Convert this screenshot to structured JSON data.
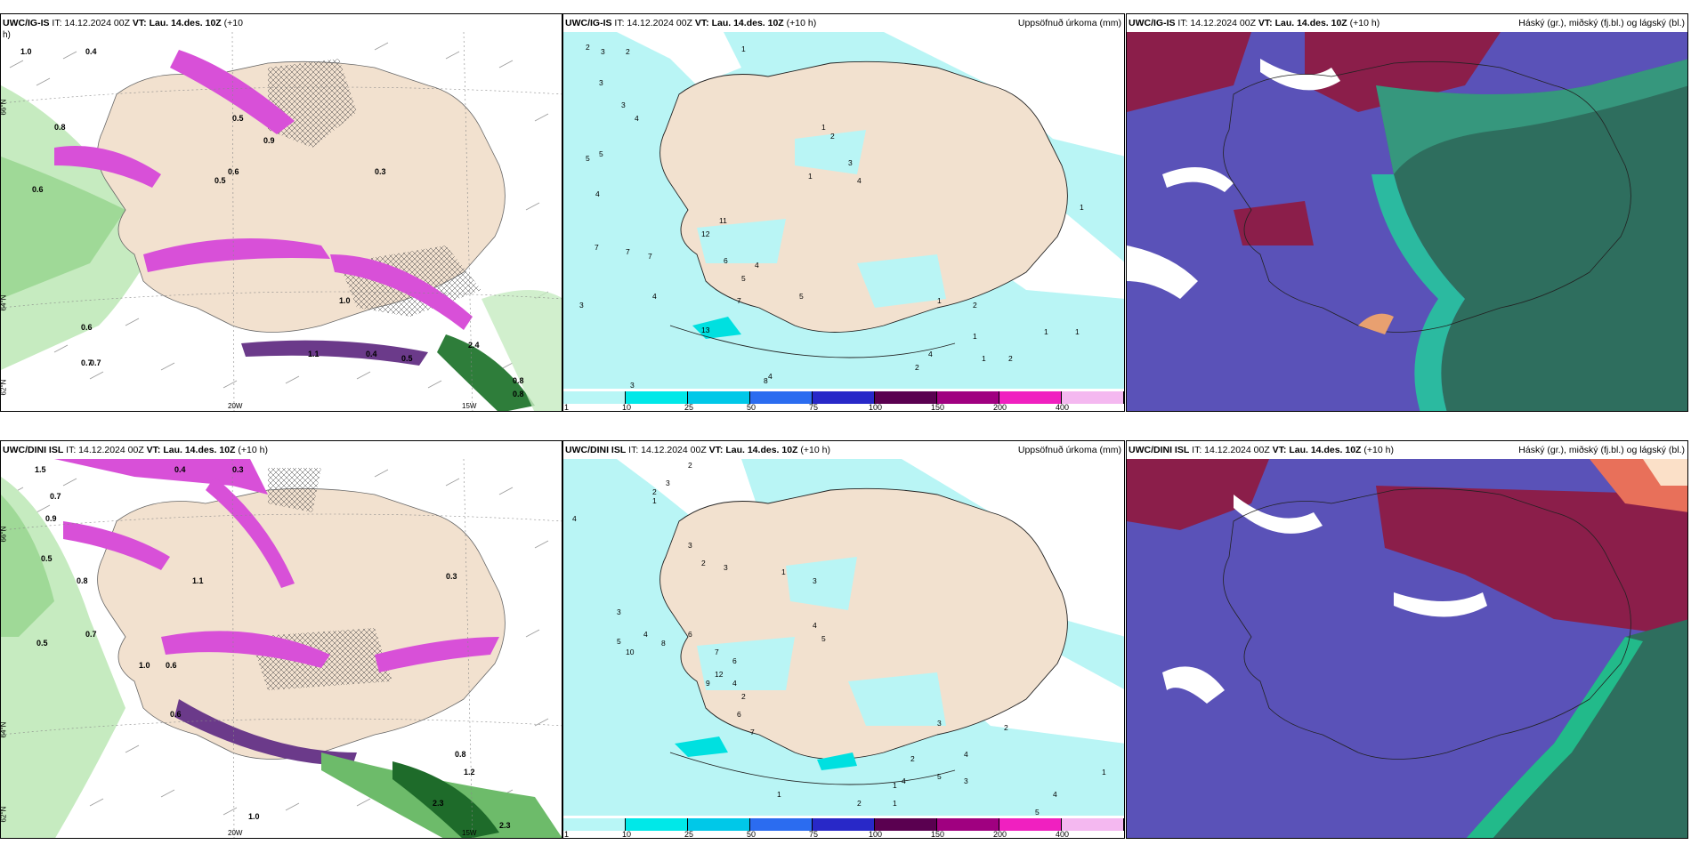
{
  "rows": [
    {
      "model": "UWC/IG-IS",
      "left_title_it": "IT: 14.12.2024 00Z",
      "left_title_vt_label": "VT:",
      "left_title_vt": "Lau. 14.des. 10Z",
      "left_title_lead": "(+10",
      "left_title_cont": "h)",
      "mid_title_it": "IT: 14.12.2024 00Z",
      "mid_title_vt_label": "VT:",
      "mid_title_vt": "Lau. 14.des. 10Z",
      "mid_title_lead": "(+10 h)",
      "mid_right": "Uppsöfnuð úrkoma (mm)",
      "right_title_it": "IT: 14.12.2024 00Z",
      "right_title_vt_label": "VT:",
      "right_title_vt": "Lau. 14.des. 10Z",
      "right_title_lead": "(+10 h)",
      "right_right": "Háský (gr.), miðský (fj.bl.) og lágský (bl.)"
    },
    {
      "model": "UWC/DINI ISL",
      "left_title_it": "IT: 14.12.2024 00Z",
      "left_title_vt_label": "VT:",
      "left_title_vt": "Lau. 14.des. 10Z",
      "left_title_lead": "(+10 h)",
      "left_title_cont": "",
      "mid_title_it": "IT: 14.12.2024 00Z",
      "mid_title_vt_label": "VT:",
      "mid_title_vt": "Lau. 14.des. 10Z",
      "mid_title_lead": "(+10 h)",
      "mid_right": "Uppsöfnuð úrkoma (mm)",
      "right_title_it": "IT: 14.12.2024 00Z",
      "right_title_vt_label": "VT:",
      "right_title_vt": "Lau. 14.des. 10Z",
      "right_title_lead": "(+10 h)",
      "right_right": "Háský (gr.), miðský (fj.bl.) og lágský (bl.)"
    }
  ],
  "axis_labels": {
    "lat66": "66°N",
    "lat64": "64°N",
    "lat62": "62°N",
    "lon20": "20W",
    "lon15": "15W"
  },
  "colorbar": {
    "ticks": [
      "1",
      "10",
      "25",
      "50",
      "75",
      "100",
      "150",
      "200",
      "400"
    ],
    "colors": [
      "#b8f6f6",
      "#00e8e8",
      "#00c8e8",
      "#2b6cf0",
      "#2828c8",
      "#5a0050",
      "#a00080",
      "#f020c0",
      "#f4b8f0"
    ]
  },
  "colors": {
    "land": "#f2e1cf",
    "sea_precip": "#b9f5f5",
    "wind_green": "#a8e0a0",
    "dark_green": "#1e6b2a",
    "magenta": "#d850d8",
    "purple": "#6b3a8a",
    "cloud_low": "#5a52b8",
    "cloud_mid": "#8b1e4a",
    "cloud_high": "#2e6e5e"
  },
  "precip_labels_row1": [
    "2",
    "3",
    "2",
    "1",
    "3",
    "3",
    "4",
    "5",
    "5",
    "4",
    "7",
    "7",
    "7",
    "3",
    "4",
    "3",
    "13",
    "11",
    "12",
    "6",
    "4",
    "5",
    "7",
    "8",
    "1",
    "2",
    "1",
    "3",
    "4",
    "5",
    "2",
    "1",
    "1",
    "2",
    "1",
    "1",
    "4",
    "1",
    "2",
    "1",
    "4"
  ],
  "precip_labels_row2": [
    "2",
    "3",
    "2",
    "1",
    "4",
    "3",
    "2",
    "3",
    "3",
    "6",
    "5",
    "4",
    "10",
    "8",
    "7",
    "6",
    "12",
    "4",
    "9",
    "2",
    "1",
    "3",
    "4",
    "5",
    "6",
    "7",
    "1",
    "2",
    "1",
    "4",
    "5",
    "3",
    "2",
    "4",
    "1",
    "2",
    "3",
    "4",
    "1",
    "5"
  ],
  "wind_labels_row1": [
    "1.0",
    "0.4",
    "0.5",
    "0.6",
    "0.8",
    "0.9",
    "0.6",
    "0.5",
    "0.3",
    "0.7",
    "1.0",
    "2.4",
    "0.8",
    "0.8",
    "0.6",
    "0.7",
    "1.1",
    "0.4",
    "0.5"
  ],
  "wind_labels_row2": [
    "1.5",
    "0.4",
    "0.3",
    "0.7",
    "0.9",
    "1.1",
    "0.5",
    "0.8",
    "0.3",
    "1.0",
    "0.6",
    "0.6",
    "0.8",
    "2.3",
    "2.3",
    "1.0",
    "0.5",
    "0.7",
    "1.2"
  ]
}
